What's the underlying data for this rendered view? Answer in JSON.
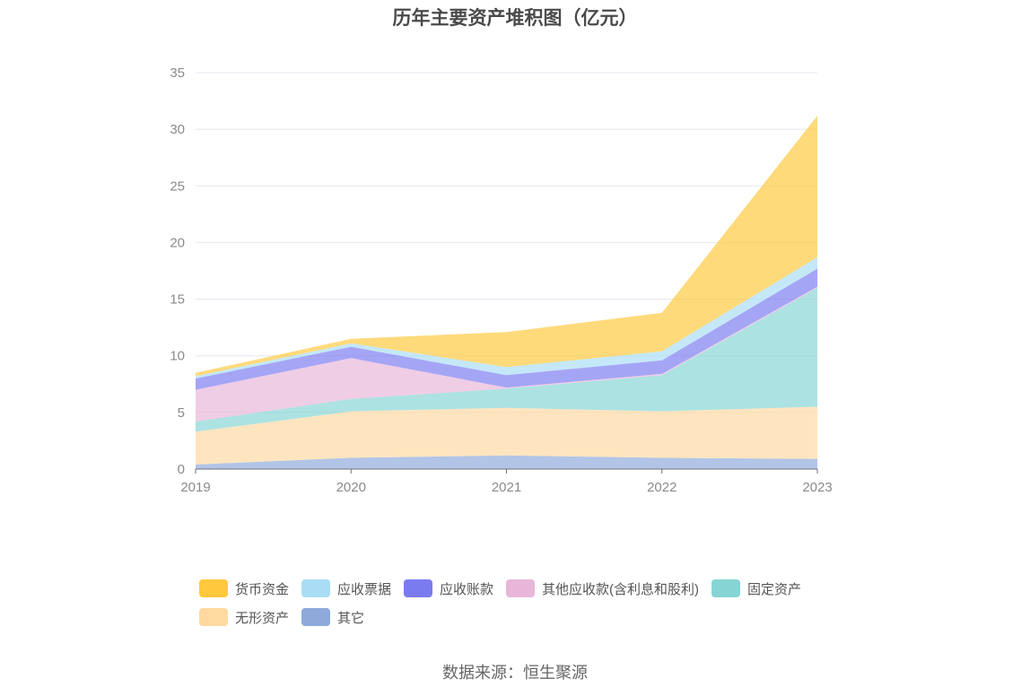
{
  "chart_data": {
    "type": "area",
    "stacked": true,
    "title": "历年主要资产堆积图（亿元）",
    "categories": [
      "2019",
      "2020",
      "2021",
      "2022",
      "2023"
    ],
    "ylim": [
      0,
      35
    ],
    "yticks": [
      0,
      5,
      10,
      15,
      20,
      25,
      30,
      35
    ],
    "grid": true,
    "legend_position": "bottom",
    "series": [
      {
        "name": "其它",
        "color": "#8DAADB",
        "values": [
          0.4,
          1.0,
          1.2,
          1.0,
          0.9
        ]
      },
      {
        "name": "无形资产",
        "color": "#FFD9A0",
        "values": [
          2.9,
          4.1,
          4.2,
          4.1,
          4.6
        ]
      },
      {
        "name": "固定资产",
        "color": "#86D4D4",
        "values": [
          0.9,
          1.1,
          1.7,
          3.2,
          10.5
        ]
      },
      {
        "name": "其他应收款(含利息和股利)",
        "color": "#E8B6D8",
        "values": [
          2.8,
          3.6,
          0.1,
          0.1,
          0.1
        ]
      },
      {
        "name": "应收账款",
        "color": "#7B7BF0",
        "values": [
          1.0,
          1.0,
          1.1,
          1.2,
          1.6
        ]
      },
      {
        "name": "应收票据",
        "color": "#A8DDF5",
        "values": [
          0.2,
          0.3,
          0.7,
          0.8,
          1.0
        ]
      },
      {
        "name": "货币资金",
        "color": "#FFC83D",
        "values": [
          0.3,
          0.4,
          3.1,
          3.4,
          12.5
        ]
      }
    ],
    "legend_order": [
      "货币资金",
      "应收票据",
      "应收账款",
      "其他应收款(含利息和股利)",
      "固定资产",
      "无形资产",
      "其它"
    ]
  },
  "source": "数据来源：恒生聚源"
}
